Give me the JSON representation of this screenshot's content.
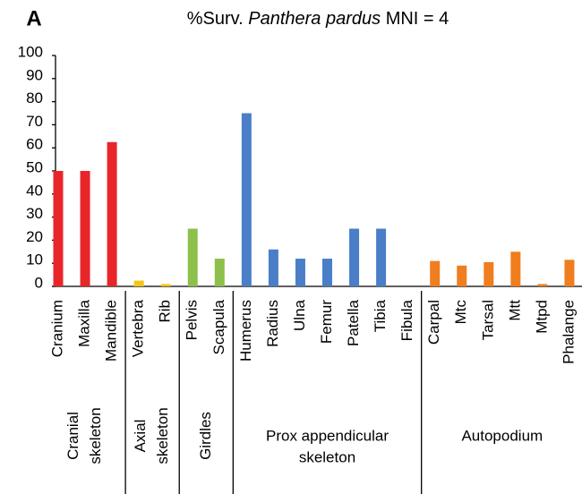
{
  "panel_label": "A",
  "chart_data": {
    "type": "bar",
    "title": "%Surv. Panthera pardus MNI = 4",
    "title_italic": "Panthera pardus",
    "categories": [
      "Cranium",
      "Maxilla",
      "Mandible",
      "Vertebra",
      "Rib",
      "Pelvis",
      "Scapula",
      "Humerus",
      "Radius",
      "Ulna",
      "Femur",
      "Patella",
      "Tibia",
      "Fibula",
      "Carpal",
      "Mtc",
      "Tarsal",
      "Mtt",
      "Mtpd",
      "Phalange"
    ],
    "values": [
      50,
      50,
      62.5,
      2.5,
      1,
      25,
      12,
      75,
      16,
      12,
      12,
      25,
      25,
      0,
      11,
      9,
      10.5,
      15,
      1,
      11.5
    ],
    "colors": [
      "#e8262a",
      "#e8262a",
      "#e8262a",
      "#f5c518",
      "#f5c518",
      "#8dc04b",
      "#8dc04b",
      "#4a7fc7",
      "#4a7fc7",
      "#4a7fc7",
      "#4a7fc7",
      "#4a7fc7",
      "#4a7fc7",
      "#4a7fc7",
      "#f07d1e",
      "#f07d1e",
      "#f07d1e",
      "#f07d1e",
      "#f07d1e",
      "#f07d1e"
    ],
    "ylim": [
      0,
      100
    ],
    "yticks": [
      0,
      10,
      20,
      30,
      40,
      50,
      60,
      70,
      80,
      90,
      100
    ],
    "groups": [
      {
        "label": [
          "Cranial",
          "skeleton"
        ],
        "size": 3,
        "orientation": "vertical"
      },
      {
        "label": [
          "Axial",
          "skeleton"
        ],
        "size": 2,
        "orientation": "vertical"
      },
      {
        "label": [
          "Girdles"
        ],
        "size": 2,
        "orientation": "vertical"
      },
      {
        "label": [
          "Prox appendicular",
          "skeleton"
        ],
        "size": 7,
        "orientation": "horizontal"
      },
      {
        "label": [
          "Autopodium"
        ],
        "size": 6,
        "orientation": "horizontal"
      }
    ]
  }
}
